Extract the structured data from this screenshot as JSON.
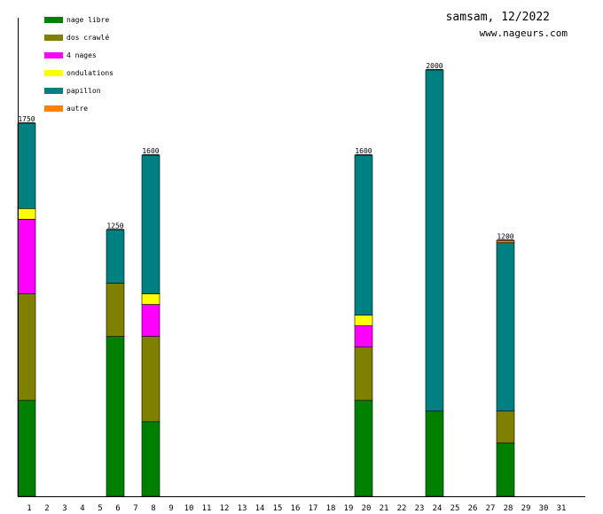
{
  "chart_data": {
    "type": "bar",
    "stacked": true,
    "title": "samsam, 12/2022",
    "subtitle": "www.nageurs.com",
    "xlabel": "",
    "ylabel": "",
    "ylim": [
      0,
      2000
    ],
    "grid": false,
    "legend_position": "top-left",
    "categories": [
      "1",
      "2",
      "3",
      "4",
      "5",
      "6",
      "7",
      "8",
      "9",
      "10",
      "11",
      "12",
      "13",
      "14",
      "15",
      "16",
      "17",
      "18",
      "19",
      "20",
      "21",
      "22",
      "23",
      "24",
      "25",
      "26",
      "27",
      "28",
      "29",
      "30",
      "31"
    ],
    "series": [
      {
        "name": "nage libre",
        "color": "#008000",
        "values": {
          "1": 450,
          "6": 750,
          "8": 350,
          "20": 450,
          "24": 400,
          "28": 250
        }
      },
      {
        "name": "dos crawlé",
        "color": "#808000",
        "values": {
          "1": 500,
          "6": 250,
          "8": 400,
          "20": 250,
          "28": 150
        }
      },
      {
        "name": "4 nages",
        "color": "#ff00ff",
        "values": {
          "1": 350,
          "8": 150,
          "20": 100
        }
      },
      {
        "name": "ondulations",
        "color": "#ffff00",
        "values": {
          "1": 50,
          "8": 50,
          "20": 50
        }
      },
      {
        "name": "papillon",
        "color": "#008080",
        "values": {
          "1": 400,
          "6": 250,
          "8": 650,
          "20": 750,
          "24": 1600,
          "28": 790
        }
      },
      {
        "name": "autre",
        "color": "#ff8000",
        "values": {
          "28": 10
        }
      }
    ],
    "totals": {
      "1": "1750",
      "6": "1250",
      "8": "1600",
      "20": "1600",
      "24": "2000",
      "28": "1200"
    }
  }
}
